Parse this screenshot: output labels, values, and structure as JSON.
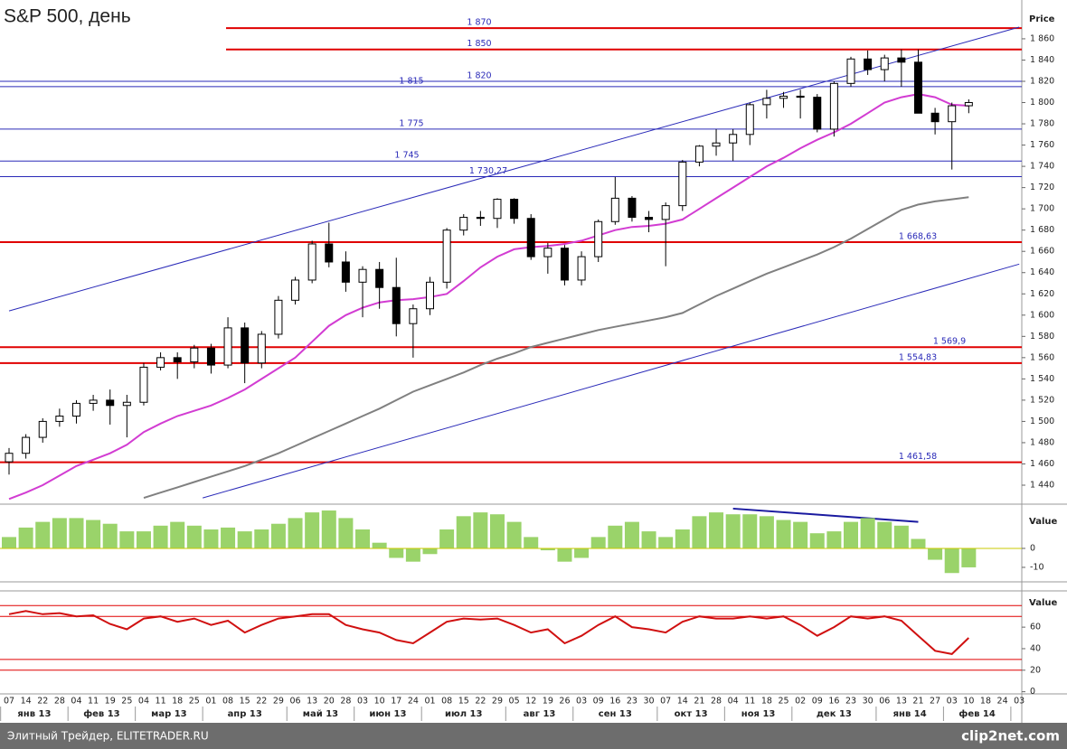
{
  "chart_data": [
    {
      "type": "candlestick",
      "title": "S&P 500, день",
      "y_label": "Price",
      "categories": [
        "07",
        "14",
        "22",
        "28",
        "04",
        "11",
        "19",
        "25",
        "04",
        "11",
        "18",
        "25",
        "01",
        "08",
        "15",
        "22",
        "29",
        "06",
        "13",
        "20",
        "28",
        "03",
        "10",
        "17",
        "24",
        "01",
        "08",
        "15",
        "22",
        "29",
        "05",
        "12",
        "19",
        "26",
        "03",
        "09",
        "16",
        "23",
        "30",
        "07",
        "14",
        "21",
        "28",
        "04",
        "11",
        "18",
        "25",
        "02",
        "09",
        "16",
        "23",
        "30",
        "06",
        "13",
        "21",
        "27",
        "03",
        "10",
        "18",
        "24",
        "03"
      ],
      "months": [
        "янв 13",
        "фев 13",
        "мар 13",
        "апр 13",
        "май 13",
        "июн 13",
        "июл 13",
        "авг 13",
        "сен 13",
        "окт 13",
        "ноя 13",
        "дек 13",
        "янв 14",
        "фев 14"
      ],
      "ohlc": [
        [
          1462,
          1475,
          1450,
          1470
        ],
        [
          1470,
          1488,
          1465,
          1485
        ],
        [
          1485,
          1503,
          1480,
          1500
        ],
        [
          1500,
          1512,
          1495,
          1505
        ],
        [
          1505,
          1520,
          1498,
          1517
        ],
        [
          1517,
          1525,
          1510,
          1520
        ],
        [
          1520,
          1530,
          1497,
          1515
        ],
        [
          1515,
          1525,
          1485,
          1518
        ],
        [
          1518,
          1555,
          1515,
          1551
        ],
        [
          1551,
          1565,
          1548,
          1560
        ],
        [
          1560,
          1565,
          1540,
          1556
        ],
        [
          1556,
          1572,
          1550,
          1569
        ],
        [
          1569,
          1573,
          1545,
          1553
        ],
        [
          1553,
          1598,
          1550,
          1588
        ],
        [
          1588,
          1593,
          1536,
          1555
        ],
        [
          1555,
          1585,
          1550,
          1582
        ],
        [
          1582,
          1618,
          1578,
          1614
        ],
        [
          1614,
          1636,
          1610,
          1633
        ],
        [
          1633,
          1670,
          1630,
          1667
        ],
        [
          1667,
          1687,
          1645,
          1650
        ],
        [
          1650,
          1660,
          1622,
          1631
        ],
        [
          1631,
          1646,
          1598,
          1643
        ],
        [
          1643,
          1650,
          1606,
          1626
        ],
        [
          1626,
          1654,
          1580,
          1592
        ],
        [
          1592,
          1610,
          1560,
          1606
        ],
        [
          1606,
          1636,
          1600,
          1631
        ],
        [
          1631,
          1682,
          1625,
          1680
        ],
        [
          1680,
          1695,
          1675,
          1692
        ],
        [
          1692,
          1698,
          1684,
          1691
        ],
        [
          1691,
          1710,
          1682,
          1709
        ],
        [
          1709,
          1710,
          1686,
          1691
        ],
        [
          1691,
          1695,
          1652,
          1655
        ],
        [
          1655,
          1668,
          1639,
          1663
        ],
        [
          1663,
          1666,
          1628,
          1633
        ],
        [
          1633,
          1660,
          1628,
          1655
        ],
        [
          1655,
          1690,
          1650,
          1688
        ],
        [
          1688,
          1730,
          1685,
          1710
        ],
        [
          1710,
          1712,
          1688,
          1692
        ],
        [
          1692,
          1698,
          1678,
          1690
        ],
        [
          1690,
          1706,
          1646,
          1703
        ],
        [
          1703,
          1746,
          1698,
          1744
        ],
        [
          1744,
          1760,
          1740,
          1759
        ],
        [
          1759,
          1775,
          1750,
          1762
        ],
        [
          1762,
          1775,
          1745,
          1770
        ],
        [
          1770,
          1800,
          1760,
          1798
        ],
        [
          1798,
          1812,
          1785,
          1804
        ],
        [
          1804,
          1810,
          1795,
          1806
        ],
        [
          1806,
          1812,
          1785,
          1805
        ],
        [
          1805,
          1808,
          1772,
          1775
        ],
        [
          1775,
          1820,
          1768,
          1818
        ],
        [
          1818,
          1843,
          1815,
          1841
        ],
        [
          1841,
          1849,
          1826,
          1831
        ],
        [
          1831,
          1845,
          1820,
          1842
        ],
        [
          1842,
          1850,
          1815,
          1838
        ],
        [
          1838,
          1850,
          1790,
          1790
        ],
        [
          1790,
          1795,
          1770,
          1782
        ],
        [
          1782,
          1800,
          1737,
          1797
        ],
        [
          1797,
          1803,
          1790,
          1800
        ]
      ],
      "moving_averages": [
        {
          "color": "#d23cd2",
          "values": [
            1427,
            1433,
            1440,
            1449,
            1458,
            1464,
            1470,
            1478,
            1490,
            1498,
            1505,
            1510,
            1515,
            1522,
            1530,
            1540,
            1550,
            1560,
            1575,
            1590,
            1600,
            1607,
            1612,
            1614,
            1615,
            1617,
            1620,
            1632,
            1645,
            1655,
            1662,
            1664,
            1665,
            1667,
            1670,
            1675,
            1680,
            1683,
            1684,
            1686,
            1690,
            1700,
            1710,
            1720,
            1730,
            1740,
            1748,
            1757,
            1765,
            1772,
            1780,
            1790,
            1800,
            1805,
            1808,
            1805,
            1798,
            1797
          ]
        },
        {
          "color": "#808080",
          "values": [
            null,
            null,
            null,
            null,
            null,
            null,
            null,
            null,
            1428,
            1433,
            1438,
            1443,
            1448,
            1453,
            1458,
            1464,
            1470,
            1477,
            1484,
            1491,
            1498,
            1505,
            1512,
            1520,
            1528,
            1534,
            1540,
            1546,
            1553,
            1559,
            1564,
            1570,
            1574,
            1578,
            1582,
            1586,
            1589,
            1592,
            1595,
            1598,
            1602,
            1610,
            1618,
            1625,
            1632,
            1639,
            1645,
            1651,
            1657,
            1664,
            1672,
            1681,
            1690,
            1699,
            1704,
            1707,
            1709,
            1711
          ]
        }
      ],
      "levels": [
        {
          "value": 1870,
          "label": "1 870",
          "color": "#e00000"
        },
        {
          "value": 1850,
          "label": "1 850",
          "color": "#e00000"
        },
        {
          "value": 1820,
          "label": "1 820",
          "color": "#2a2ab8"
        },
        {
          "value": 1815,
          "label": "1 815",
          "color": "#2a2ab8"
        },
        {
          "value": 1775,
          "label": "1 775",
          "color": "#2a2ab8"
        },
        {
          "value": 1745,
          "label": "1 745",
          "color": "#2a2ab8"
        },
        {
          "value": 1730.27,
          "label": "1 730,27",
          "color": "#2a2ab8"
        },
        {
          "value": 1668.63,
          "label": "1 668,63",
          "color": "#e00000"
        },
        {
          "value": 1569.9,
          "label": "1 569,9",
          "color": "#e00000"
        },
        {
          "value": 1554.83,
          "label": "1 554,83",
          "color": "#e00000"
        },
        {
          "value": 1461.58,
          "label": "1 461,58",
          "color": "#e00000"
        }
      ],
      "trendlines": [
        {
          "from": [
            0,
            1604
          ],
          "to": [
            60,
            1871
          ],
          "color": "#2a2ab8"
        },
        {
          "from": [
            11.5,
            1428
          ],
          "to": [
            60,
            1648
          ],
          "color": "#2a2ab8"
        }
      ],
      "ylim": [
        1423,
        1888
      ],
      "yticks": [
        {
          "value": 1440,
          "label": "1 440"
        },
        {
          "value": 1460,
          "label": "1 460"
        },
        {
          "value": 1480,
          "label": "1 480"
        },
        {
          "value": 1500,
          "label": "1 500"
        },
        {
          "value": 1520,
          "label": "1 520"
        },
        {
          "value": 1540,
          "label": "1 540"
        },
        {
          "value": 1560,
          "label": "1 560"
        },
        {
          "value": 1580,
          "label": "1 580"
        },
        {
          "value": 1600,
          "label": "1 600"
        },
        {
          "value": 1620,
          "label": "1 620"
        },
        {
          "value": 1640,
          "label": "1 640"
        },
        {
          "value": 1660,
          "label": "1 660"
        },
        {
          "value": 1680,
          "label": "1 680"
        },
        {
          "value": 1700,
          "label": "1 700"
        },
        {
          "value": 1720,
          "label": "1 720"
        },
        {
          "value": 1740,
          "label": "1 740"
        },
        {
          "value": 1760,
          "label": "1 760"
        },
        {
          "value": 1780,
          "label": "1 780"
        },
        {
          "value": 1800,
          "label": "1 800"
        },
        {
          "value": 1820,
          "label": "1 820"
        },
        {
          "value": 1840,
          "label": "1 840"
        },
        {
          "value": 1860,
          "label": "1 860"
        }
      ]
    },
    {
      "type": "bar",
      "y_label": "Value",
      "color": "#9ad36a",
      "values": [
        6,
        11,
        14,
        16,
        16,
        15,
        13,
        9,
        9,
        12,
        14,
        12,
        10,
        11,
        9,
        10,
        13,
        16,
        19,
        20,
        16,
        10,
        3,
        -5,
        -7,
        -3,
        10,
        17,
        19,
        18,
        14,
        6,
        -1,
        -7,
        -5,
        6,
        12,
        14,
        9,
        6,
        10,
        17,
        19,
        18,
        18,
        17,
        15,
        14,
        8,
        9,
        14,
        16,
        14,
        12,
        5,
        -6,
        -13,
        -10
      ],
      "trendlines": [
        {
          "from": [
            43,
            21
          ],
          "to": [
            54,
            14
          ],
          "color": "#1a1aa0"
        }
      ],
      "ylim": [
        -16.7,
        22.4
      ],
      "yticks": [
        0,
        -10
      ]
    },
    {
      "type": "line",
      "y_label": "Value",
      "color": "#d01010",
      "values": [
        72,
        75,
        72,
        73,
        70,
        71,
        63,
        58,
        68,
        70,
        65,
        68,
        62,
        66,
        55,
        62,
        68,
        70,
        72,
        72,
        62,
        58,
        55,
        48,
        45,
        55,
        65,
        68,
        67,
        68,
        62,
        55,
        58,
        45,
        52,
        62,
        70,
        60,
        58,
        55,
        65,
        70,
        68,
        68,
        70,
        68,
        70,
        62,
        52,
        60,
        70,
        68,
        70,
        66,
        52,
        38,
        35,
        50
      ],
      "levels": [
        {
          "value": 80,
          "color": "#e00000"
        },
        {
          "value": 70,
          "color": "#e00000"
        },
        {
          "value": 30,
          "color": "#e00000"
        },
        {
          "value": 20,
          "color": "#e00000"
        }
      ],
      "ylim": [
        -2,
        92
      ],
      "yticks": [
        60,
        40,
        20,
        0
      ]
    }
  ],
  "footer": "Элитный Трейдер, ELITETRADER.RU",
  "watermark": "clip2net.com"
}
